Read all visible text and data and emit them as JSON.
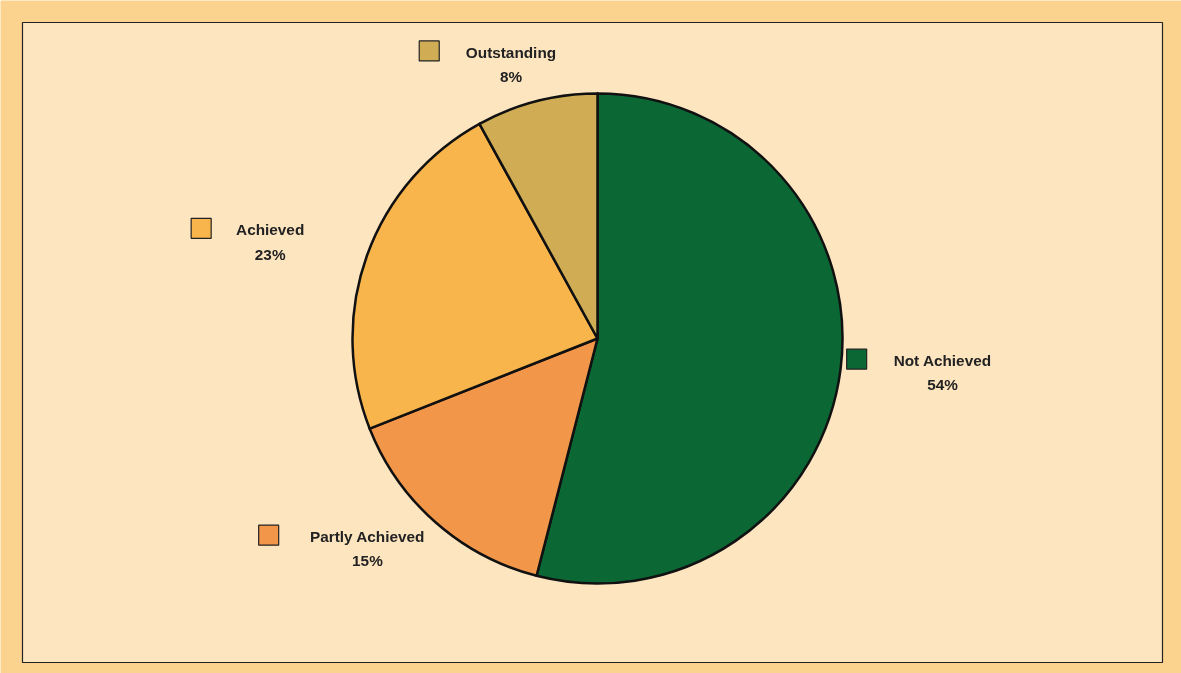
{
  "chart_data": {
    "type": "pie",
    "categories": [
      "Not Achieved",
      "Partly Achieved",
      "Achieved",
      "Outstanding"
    ],
    "values": [
      54,
      15,
      23,
      8
    ],
    "colors": [
      "#0b6835",
      "#f2964a",
      "#f8b54c",
      "#d0ad55"
    ],
    "value_labels": [
      "54%",
      "15%",
      "23%",
      "8%"
    ],
    "legend": "left"
  }
}
